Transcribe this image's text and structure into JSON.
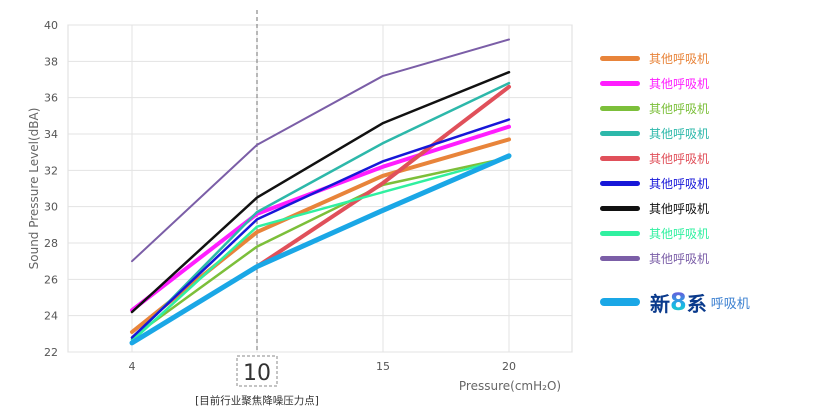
{
  "chart_data": {
    "type": "line",
    "ylabel": "Sound Pressure Level(dBA)",
    "xlabel": "Pressure(cmH₂O)",
    "x": [
      4,
      10,
      15,
      20
    ],
    "x_tick_labels": [
      "4",
      "10",
      "15",
      "20"
    ],
    "ylim": [
      22,
      40
    ],
    "y_ticks": [
      22,
      24,
      26,
      28,
      30,
      32,
      34,
      36,
      38,
      40
    ],
    "grid": true,
    "legend_position": "right",
    "highlight_x": 10,
    "highlight_label": "[目前行业聚焦降噪压力点]",
    "series": [
      {
        "name": "其他呼吸机",
        "color": "#e8843a",
        "width": 4,
        "values": [
          23.1,
          28.6,
          31.7,
          33.7
        ]
      },
      {
        "name": "其他呼吸机",
        "color": "#ff1dff",
        "width": 4,
        "values": [
          24.3,
          29.6,
          32.2,
          34.4
        ]
      },
      {
        "name": "其他呼吸机",
        "color": "#7cbf3a",
        "width": 2.5,
        "values": [
          22.8,
          27.8,
          31.2,
          32.7
        ]
      },
      {
        "name": "其他呼吸机",
        "color": "#2db8aa",
        "width": 2.5,
        "values": [
          22.7,
          29.7,
          33.5,
          36.8
        ]
      },
      {
        "name": "其他呼吸机",
        "color": "#e0505a",
        "width": 4,
        "values": [
          22.5,
          26.7,
          31.3,
          36.6
        ]
      },
      {
        "name": "其他呼吸机",
        "color": "#1717d8",
        "width": 2.5,
        "values": [
          22.8,
          29.3,
          32.5,
          34.8
        ]
      },
      {
        "name": "其他呼吸机",
        "color": "#111111",
        "width": 2.5,
        "values": [
          24.2,
          30.5,
          34.6,
          37.4
        ]
      },
      {
        "name": "其他呼吸机",
        "color": "#30f0a0",
        "width": 2.5,
        "values": [
          22.6,
          28.9,
          30.8,
          32.7
        ]
      },
      {
        "name": "其他呼吸机",
        "color": "#7b5ea7",
        "width": 2,
        "values": [
          27.0,
          33.4,
          37.2,
          39.2
        ]
      },
      {
        "name": "新8系 呼吸机",
        "color": "#1aa7e6",
        "width": 5,
        "values": [
          22.5,
          26.7,
          29.8,
          32.8
        ],
        "highlight": true
      }
    ]
  },
  "legend": {
    "items": [
      {
        "label": "其他呼吸机",
        "color": "#e8843a"
      },
      {
        "label": "其他呼吸机",
        "color": "#ff1dff"
      },
      {
        "label": "其他呼吸机",
        "color": "#7cbf3a"
      },
      {
        "label": "其他呼吸机",
        "color": "#2db8aa"
      },
      {
        "label": "其他呼吸机",
        "color": "#e0505a"
      },
      {
        "label": "其他呼吸机",
        "color": "#1717d8"
      },
      {
        "label": "其他呼吸机",
        "color": "#111111"
      },
      {
        "label": "其他呼吸机",
        "color": "#30f0a0"
      },
      {
        "label": "其他呼吸机",
        "color": "#7b5ea7"
      }
    ],
    "highlight": {
      "brand": "新",
      "digit": "8",
      "suffix": "系",
      "sub": "呼吸机",
      "color": "#1aa7e6"
    }
  }
}
